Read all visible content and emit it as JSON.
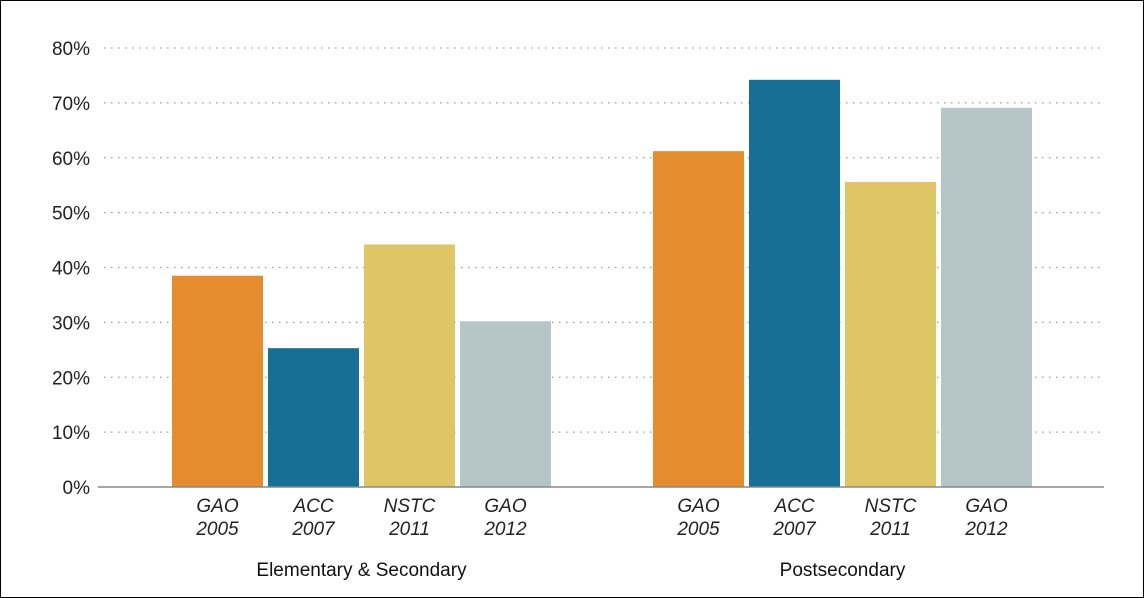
{
  "chart_data": {
    "type": "bar",
    "y_ticks": [
      "0%",
      "10%",
      "20%",
      "30%",
      "40%",
      "50%",
      "60%",
      "70%",
      "80%"
    ],
    "ylim": [
      0,
      80
    ],
    "grid": true,
    "bar_colors": [
      "#E48C2E",
      "#186F95",
      "#DFC566",
      "#B6C6C6"
    ],
    "groups": [
      {
        "label": "Elementary & Secondary",
        "bars": [
          {
            "line1": "GAO",
            "line2": "2005",
            "value": 38.5
          },
          {
            "line1": "ACC",
            "line2": "2007",
            "value": 25.3
          },
          {
            "line1": "NSTC",
            "line2": "2011",
            "value": 44.2
          },
          {
            "line1": "GAO",
            "line2": "2012",
            "value": 30.2
          }
        ]
      },
      {
        "label": "Postsecondary",
        "bars": [
          {
            "line1": "GAO",
            "line2": "2005",
            "value": 61.2
          },
          {
            "line1": "ACC",
            "line2": "2007",
            "value": 74.2
          },
          {
            "line1": "NSTC",
            "line2": "2011",
            "value": 55.6
          },
          {
            "line1": "GAO",
            "line2": "2012",
            "value": 69.1
          }
        ]
      }
    ]
  }
}
